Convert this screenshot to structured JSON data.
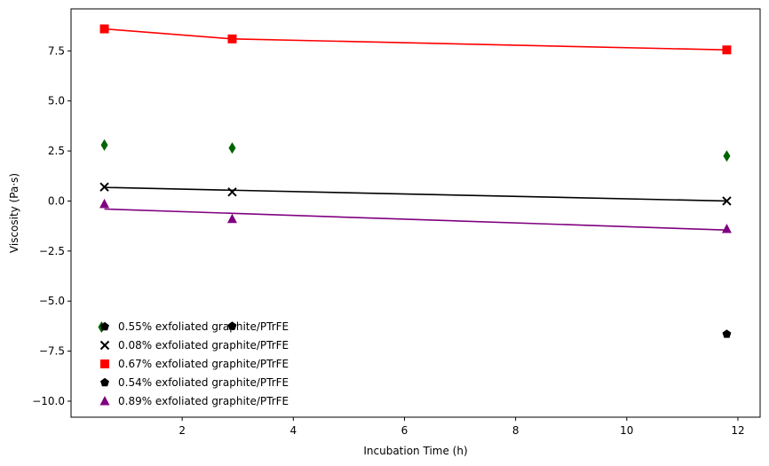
{
  "chart_data": {
    "type": "scatter",
    "xlabel": "Incubation Time (h)",
    "ylabel": "Viscosity (Pa·s)",
    "xlim": [
      0.0,
      12.4
    ],
    "ylim": [
      -10.8,
      9.6
    ],
    "xticks": [
      2,
      4,
      6,
      8,
      10,
      12
    ],
    "yticks": [
      -10.0,
      -7.5,
      -5.0,
      -2.5,
      0.0,
      2.5,
      5.0,
      7.5
    ],
    "xtick_labels": [
      "2",
      "4",
      "6",
      "8",
      "10",
      "12"
    ],
    "ytick_labels": [
      "−10.0",
      "−7.5",
      "−5.0",
      "−2.5",
      "0.0",
      "2.5",
      "5.0",
      "7.5"
    ],
    "grid": false,
    "legend_position": "lower-left",
    "series": [
      {
        "name": "0.55% exfoliated graphite/PTrFE",
        "marker": "diamond",
        "color": "#006400",
        "legend_color": "#000000",
        "legend_marker": "pentagon",
        "x": [
          0.6,
          2.9,
          11.8
        ],
        "y": [
          2.8,
          2.65,
          2.25
        ],
        "trend": null
      },
      {
        "name": "0.08% exfoliated graphite/PTrFE",
        "marker": "x",
        "color": "#000000",
        "x": [
          0.6,
          2.9,
          11.8
        ],
        "y": [
          0.7,
          0.45,
          0.0
        ],
        "trend": [
          [
            0.6,
            0.68
          ],
          [
            11.8,
            0.0
          ]
        ]
      },
      {
        "name": "0.67% exfoliated graphite/PTrFE",
        "marker": "square",
        "color": "#ff0000",
        "x": [
          0.6,
          2.9,
          11.8
        ],
        "y": [
          8.6,
          8.1,
          7.55
        ],
        "trend": [
          [
            0.6,
            8.6
          ],
          [
            2.9,
            8.1
          ],
          [
            11.8,
            7.55
          ]
        ]
      },
      {
        "name": "0.54% exfoliated graphite/PTrFE",
        "marker": "pentagon",
        "color": "#000000",
        "x": [
          2.9,
          11.8
        ],
        "y": [
          -6.25,
          -6.65
        ],
        "trend": null
      },
      {
        "name": "0.89% exfoliated graphite/PTrFE",
        "marker": "triangle",
        "color": "#800080",
        "x": [
          0.6,
          2.9,
          11.8
        ],
        "y": [
          -0.15,
          -0.9,
          -1.4
        ],
        "trend": [
          [
            0.6,
            -0.4
          ],
          [
            11.8,
            -1.45
          ]
        ]
      }
    ],
    "extra_markers": [
      {
        "marker": "diamond",
        "color": "#006400",
        "x": 0.55,
        "y": -6.3
      }
    ]
  }
}
